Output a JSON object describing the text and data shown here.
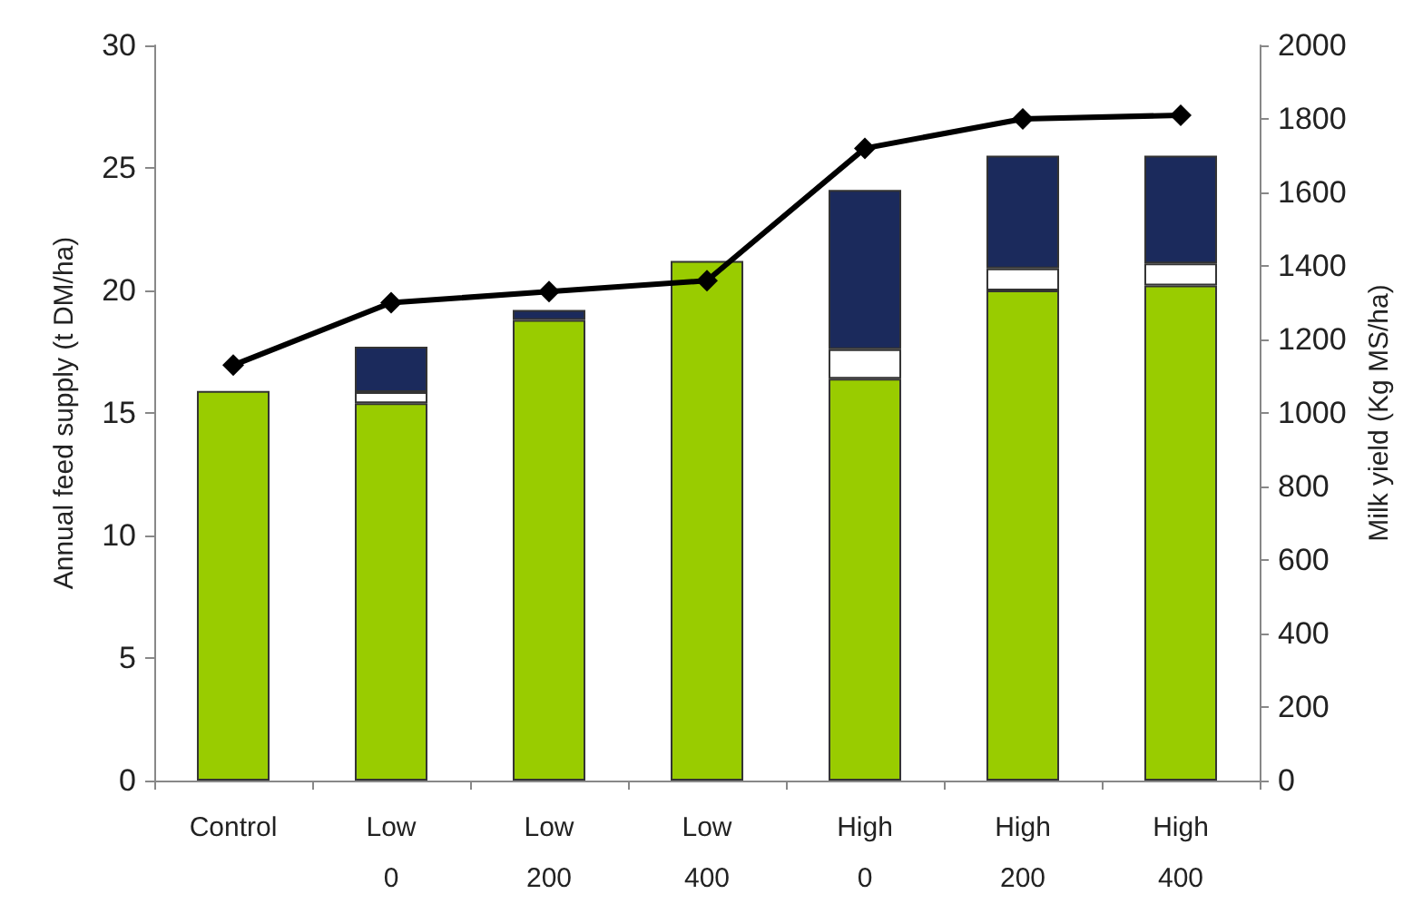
{
  "chart_data": {
    "type": "bar",
    "stacked": true,
    "ylabel": "Annual feed supply (t DM/ha)",
    "y2label": "Milk yield (Kg MS/ha)",
    "categories": [
      "Control",
      "Low\n0",
      "Low\n200",
      "Low\n400",
      "High\n0",
      "High\n200",
      "High\n400"
    ],
    "series": [
      {
        "color": "#99cc00",
        "values": [
          15.9,
          15.4,
          18.8,
          21.2,
          16.4,
          20.0,
          20.2
        ]
      },
      {
        "color": "#ffffff",
        "values": [
          null,
          0.45,
          null,
          null,
          1.2,
          0.9,
          0.9
        ]
      },
      {
        "color": "#1b2a5c",
        "values": [
          null,
          1.85,
          0.4,
          null,
          6.5,
          4.6,
          4.4
        ]
      },
      {
        "type": "line",
        "axis": "y2",
        "color": "#000000",
        "marker": "diamond",
        "values": [
          1130,
          1300,
          1330,
          1360,
          1720,
          1800,
          1810
        ]
      }
    ],
    "ylim": [
      0,
      30
    ],
    "yticks": [
      0,
      5,
      10,
      15,
      20,
      25,
      30
    ],
    "y2lim": [
      0,
      2000
    ],
    "y2ticks": [
      0,
      200,
      400,
      600,
      800,
      1000,
      1200,
      1400,
      1600,
      1800,
      2000
    ],
    "grid": false
  }
}
